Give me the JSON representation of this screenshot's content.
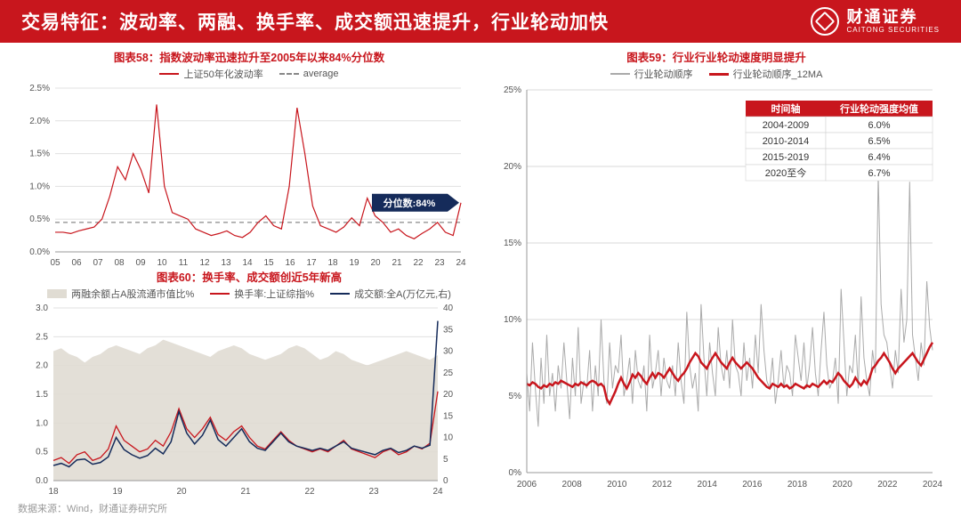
{
  "header": {
    "title": "交易特征：波动率、两融、换手率、成交额迅速提升，行业轮动加快",
    "logo_cn": "财通证券",
    "logo_en": "CAITONG SECURITIES"
  },
  "source": "数据来源：Wind，财通证券研究所",
  "chart58": {
    "type": "line",
    "title": "图表58：指数波动率迅速拉升至2005年以来84%分位数",
    "legend": [
      {
        "label": "上证50年化波动率",
        "color": "#c8161d",
        "style": "solid"
      },
      {
        "label": "average",
        "color": "#888888",
        "style": "dashed"
      }
    ],
    "badge": "分位数:84%",
    "x_labels": [
      "05",
      "06",
      "07",
      "08",
      "09",
      "10",
      "11",
      "12",
      "13",
      "14",
      "15",
      "16",
      "17",
      "18",
      "19",
      "20",
      "21",
      "22",
      "23",
      "24"
    ],
    "ylim": [
      0,
      2.5
    ],
    "ytick_step": 0.5,
    "y_format": "percent",
    "average_value": 0.45,
    "series": {
      "volatility": [
        0.3,
        0.3,
        0.28,
        0.32,
        0.35,
        0.38,
        0.5,
        0.85,
        1.3,
        1.1,
        1.5,
        1.25,
        0.9,
        2.25,
        1.0,
        0.6,
        0.55,
        0.5,
        0.35,
        0.3,
        0.25,
        0.28,
        0.32,
        0.25,
        0.22,
        0.3,
        0.45,
        0.55,
        0.4,
        0.35,
        1.0,
        2.2,
        1.5,
        0.7,
        0.4,
        0.35,
        0.3,
        0.38,
        0.52,
        0.4,
        0.82,
        0.55,
        0.45,
        0.3,
        0.35,
        0.25,
        0.2,
        0.28,
        0.35,
        0.45,
        0.3,
        0.25,
        0.75
      ]
    },
    "colors": {
      "line": "#c8161d",
      "avg": "#888888",
      "grid": "#e0e0e0",
      "axis": "#555555",
      "badge_bg": "#152b5a"
    }
  },
  "chart60": {
    "type": "multi-line-area",
    "title": "图表60：换手率、成交额创近5年新高",
    "legend": [
      {
        "label": "两融余额占A股流通市值比%",
        "color": "#e0dcd3",
        "style": "area"
      },
      {
        "label": "换手率:上证综指%",
        "color": "#c8161d",
        "style": "solid"
      },
      {
        "label": "成交额:全A(万亿元,右)",
        "color": "#152b5a",
        "style": "solid"
      }
    ],
    "x_labels": [
      "18",
      "19",
      "20",
      "21",
      "22",
      "23",
      "24"
    ],
    "y_left": {
      "lim": [
        0,
        3.0
      ],
      "step": 0.5
    },
    "y_right": {
      "lim": [
        0,
        40
      ],
      "step": 5
    },
    "series": {
      "margin_ratio": [
        2.25,
        2.3,
        2.2,
        2.15,
        2.05,
        2.15,
        2.2,
        2.3,
        2.35,
        2.3,
        2.25,
        2.2,
        2.3,
        2.35,
        2.45,
        2.4,
        2.35,
        2.3,
        2.25,
        2.2,
        2.15,
        2.25,
        2.3,
        2.35,
        2.3,
        2.2,
        2.15,
        2.1,
        2.15,
        2.2,
        2.3,
        2.35,
        2.3,
        2.2,
        2.1,
        2.15,
        2.25,
        2.2,
        2.1,
        2.05,
        2.0,
        2.05,
        2.1,
        2.15,
        2.2,
        2.25,
        2.2,
        2.15,
        2.1,
        2.18
      ],
      "turnover": [
        0.35,
        0.4,
        0.3,
        0.45,
        0.5,
        0.35,
        0.4,
        0.55,
        0.95,
        0.7,
        0.6,
        0.5,
        0.55,
        0.7,
        0.6,
        0.85,
        1.25,
        0.9,
        0.75,
        0.9,
        1.1,
        0.8,
        0.7,
        0.85,
        0.95,
        0.75,
        0.6,
        0.55,
        0.7,
        0.85,
        0.7,
        0.6,
        0.55,
        0.5,
        0.55,
        0.5,
        0.6,
        0.7,
        0.55,
        0.5,
        0.45,
        0.4,
        0.5,
        0.55,
        0.45,
        0.5,
        0.6,
        0.55,
        0.65,
        1.55
      ],
      "volume": [
        3.5,
        4.0,
        3.2,
        4.8,
        5.0,
        3.8,
        4.2,
        5.5,
        10.0,
        7.2,
        6.0,
        5.2,
        5.8,
        7.5,
        6.2,
        9.0,
        16.0,
        11.0,
        8.5,
        10.5,
        14.0,
        9.5,
        8.0,
        10.0,
        12.0,
        9.0,
        7.5,
        7.0,
        9.0,
        11.0,
        9.0,
        8.0,
        7.5,
        7.0,
        7.5,
        7.0,
        8.0,
        9.0,
        7.5,
        7.0,
        6.5,
        6.0,
        7.0,
        7.5,
        6.5,
        7.0,
        8.0,
        7.5,
        8.2,
        37.0
      ]
    },
    "colors": {
      "area": "#e0dcd3",
      "turnover": "#c8161d",
      "volume": "#152b5a",
      "grid": "#e0e0e0"
    }
  },
  "chart59": {
    "type": "line",
    "title": "图表59：行业行业轮动速度明显提升",
    "legend": [
      {
        "label": "行业轮动顺序",
        "color": "#aaaaaa",
        "style": "solid"
      },
      {
        "label": "行业轮动顺序_12MA",
        "color": "#c8161d",
        "style": "solid-thick"
      }
    ],
    "x_labels": [
      "2006",
      "2008",
      "2010",
      "2012",
      "2014",
      "2016",
      "2018",
      "2020",
      "2022",
      "2024"
    ],
    "ylim": [
      0,
      25
    ],
    "ytick_step": 5,
    "y_format": "percent",
    "table": {
      "headers": [
        "时间轴",
        "行业轮动强度均值"
      ],
      "rows": [
        [
          "2004-2009",
          "6.0%"
        ],
        [
          "2010-2014",
          "6.5%"
        ],
        [
          "2015-2019",
          "6.4%"
        ],
        [
          "2020至今",
          "6.7%"
        ]
      ],
      "header_bg": "#c8161d",
      "header_fg": "#ffffff",
      "cell_bg": "#ffffff",
      "border": "#cccccc"
    },
    "series_gray": [
      6.5,
      4.0,
      8.5,
      5.5,
      3.0,
      7.5,
      4.5,
      9.0,
      5.0,
      6.5,
      4.0,
      7.0,
      5.5,
      8.5,
      6.0,
      3.5,
      7.5,
      5.0,
      9.5,
      4.5,
      6.0,
      5.5,
      8.0,
      4.0,
      7.0,
      5.0,
      10.0,
      6.0,
      4.5,
      8.5,
      5.5,
      7.0,
      6.5,
      9.0,
      5.0,
      6.0,
      7.5,
      4.5,
      8.0,
      6.0,
      5.5,
      7.0,
      4.0,
      9.0,
      5.5,
      6.5,
      8.0,
      5.0,
      7.5,
      6.0,
      5.5,
      7.0,
      5.0,
      8.5,
      6.0,
      4.5,
      10.5,
      7.0,
      5.5,
      6.5,
      4.0,
      11.0,
      7.5,
      5.0,
      8.5,
      6.5,
      5.0,
      9.5,
      7.0,
      6.0,
      8.0,
      5.5,
      10.0,
      7.0,
      6.5,
      5.0,
      8.5,
      6.0,
      7.5,
      5.5,
      9.0,
      6.5,
      11.0,
      8.0,
      6.0,
      5.5,
      7.5,
      4.5,
      6.0,
      8.0,
      5.5,
      7.0,
      6.5,
      5.0,
      9.0,
      7.5,
      6.0,
      8.5,
      5.5,
      7.0,
      9.5,
      6.5,
      5.0,
      8.0,
      10.5,
      7.0,
      5.5,
      6.0,
      7.5,
      4.5,
      12.0,
      8.5,
      5.0,
      7.0,
      6.5,
      9.0,
      5.5,
      11.5,
      7.5,
      6.0,
      5.0,
      8.0,
      6.5,
      19.5,
      11.0,
      9.0,
      8.5,
      7.0,
      5.5,
      8.0,
      6.5,
      12.0,
      8.5,
      10.0,
      19.0,
      9.0,
      7.5,
      6.0,
      8.5,
      7.0,
      12.5,
      9.5,
      8.0
    ],
    "series_ma": [
      5.8,
      5.7,
      5.9,
      5.8,
      5.6,
      5.5,
      5.7,
      5.6,
      5.8,
      5.7,
      5.9,
      5.8,
      6.0,
      5.9,
      5.8,
      5.7,
      5.6,
      5.8,
      5.7,
      5.9,
      5.8,
      5.7,
      5.9,
      6.0,
      5.9,
      5.7,
      5.8,
      5.6,
      4.8,
      4.5,
      4.9,
      5.3,
      5.8,
      6.2,
      5.8,
      5.5,
      5.9,
      6.4,
      6.2,
      6.5,
      6.3,
      6.0,
      5.8,
      6.2,
      6.5,
      6.2,
      6.5,
      6.4,
      6.2,
      6.5,
      6.8,
      6.5,
      6.2,
      6.0,
      6.3,
      6.5,
      6.8,
      7.2,
      7.5,
      7.8,
      7.6,
      7.2,
      7.0,
      6.8,
      7.2,
      7.5,
      7.8,
      7.5,
      7.2,
      7.0,
      6.8,
      7.2,
      7.5,
      7.2,
      7.0,
      6.8,
      7.0,
      7.2,
      7.0,
      6.8,
      6.5,
      6.2,
      6.0,
      5.8,
      5.6,
      5.5,
      5.8,
      5.7,
      5.6,
      5.8,
      5.6,
      5.7,
      5.5,
      5.6,
      5.8,
      5.7,
      5.6,
      5.5,
      5.7,
      5.6,
      5.8,
      5.7,
      5.6,
      5.8,
      6.0,
      5.8,
      6.0,
      5.9,
      6.2,
      6.5,
      6.3,
      6.0,
      5.8,
      5.6,
      5.8,
      6.2,
      5.9,
      5.7,
      6.0,
      5.8,
      6.2,
      6.8,
      7.0,
      7.3,
      7.5,
      7.8,
      7.5,
      7.2,
      6.8,
      6.5,
      6.8,
      7.0,
      7.2,
      7.4,
      7.6,
      7.8,
      7.5,
      7.2,
      7.0,
      7.4,
      7.8,
      8.2,
      8.5
    ],
    "colors": {
      "gray": "#aaaaaa",
      "ma": "#c8161d",
      "grid": "#d8d8d8"
    }
  }
}
